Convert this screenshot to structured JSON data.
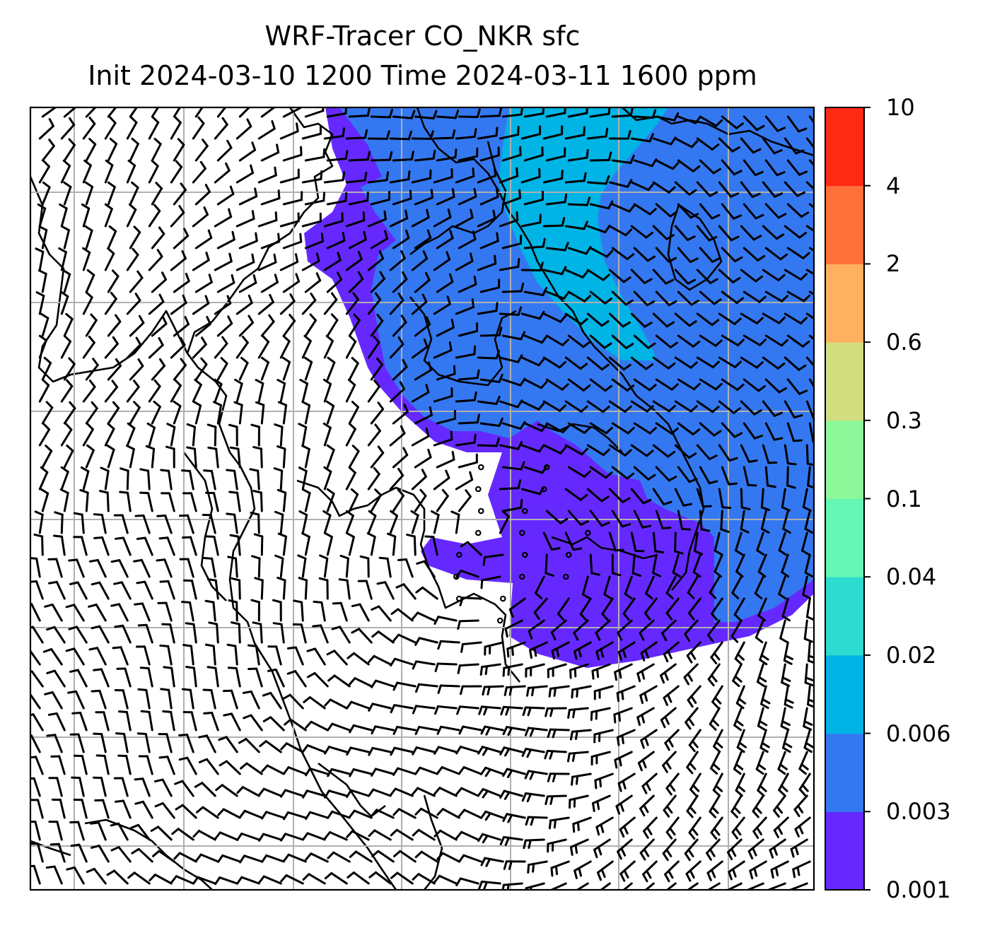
{
  "title_line1": "WRF-Tracer CO_NKR sfc",
  "title_line2": "Init 2024-03-10 1200 Time 2024-03-11 1600 ppm",
  "colorbar": {
    "levels": [
      "0.001",
      "0.003",
      "0.006",
      "0.02",
      "0.04",
      "0.1",
      "0.3",
      "0.6",
      "2",
      "4",
      "10"
    ],
    "colors": [
      "#6529ff",
      "#3478f1",
      "#00b4e6",
      "#2edccf",
      "#64f7b6",
      "#8cf89a",
      "#d1de80",
      "#ffb060",
      "#ff6f3a",
      "#ff2a14"
    ]
  },
  "map": {
    "background_color": "#ffffff",
    "gridline_color": "#b0b0b0",
    "barb_color": "#000000",
    "coastline_color": "#000000"
  }
}
